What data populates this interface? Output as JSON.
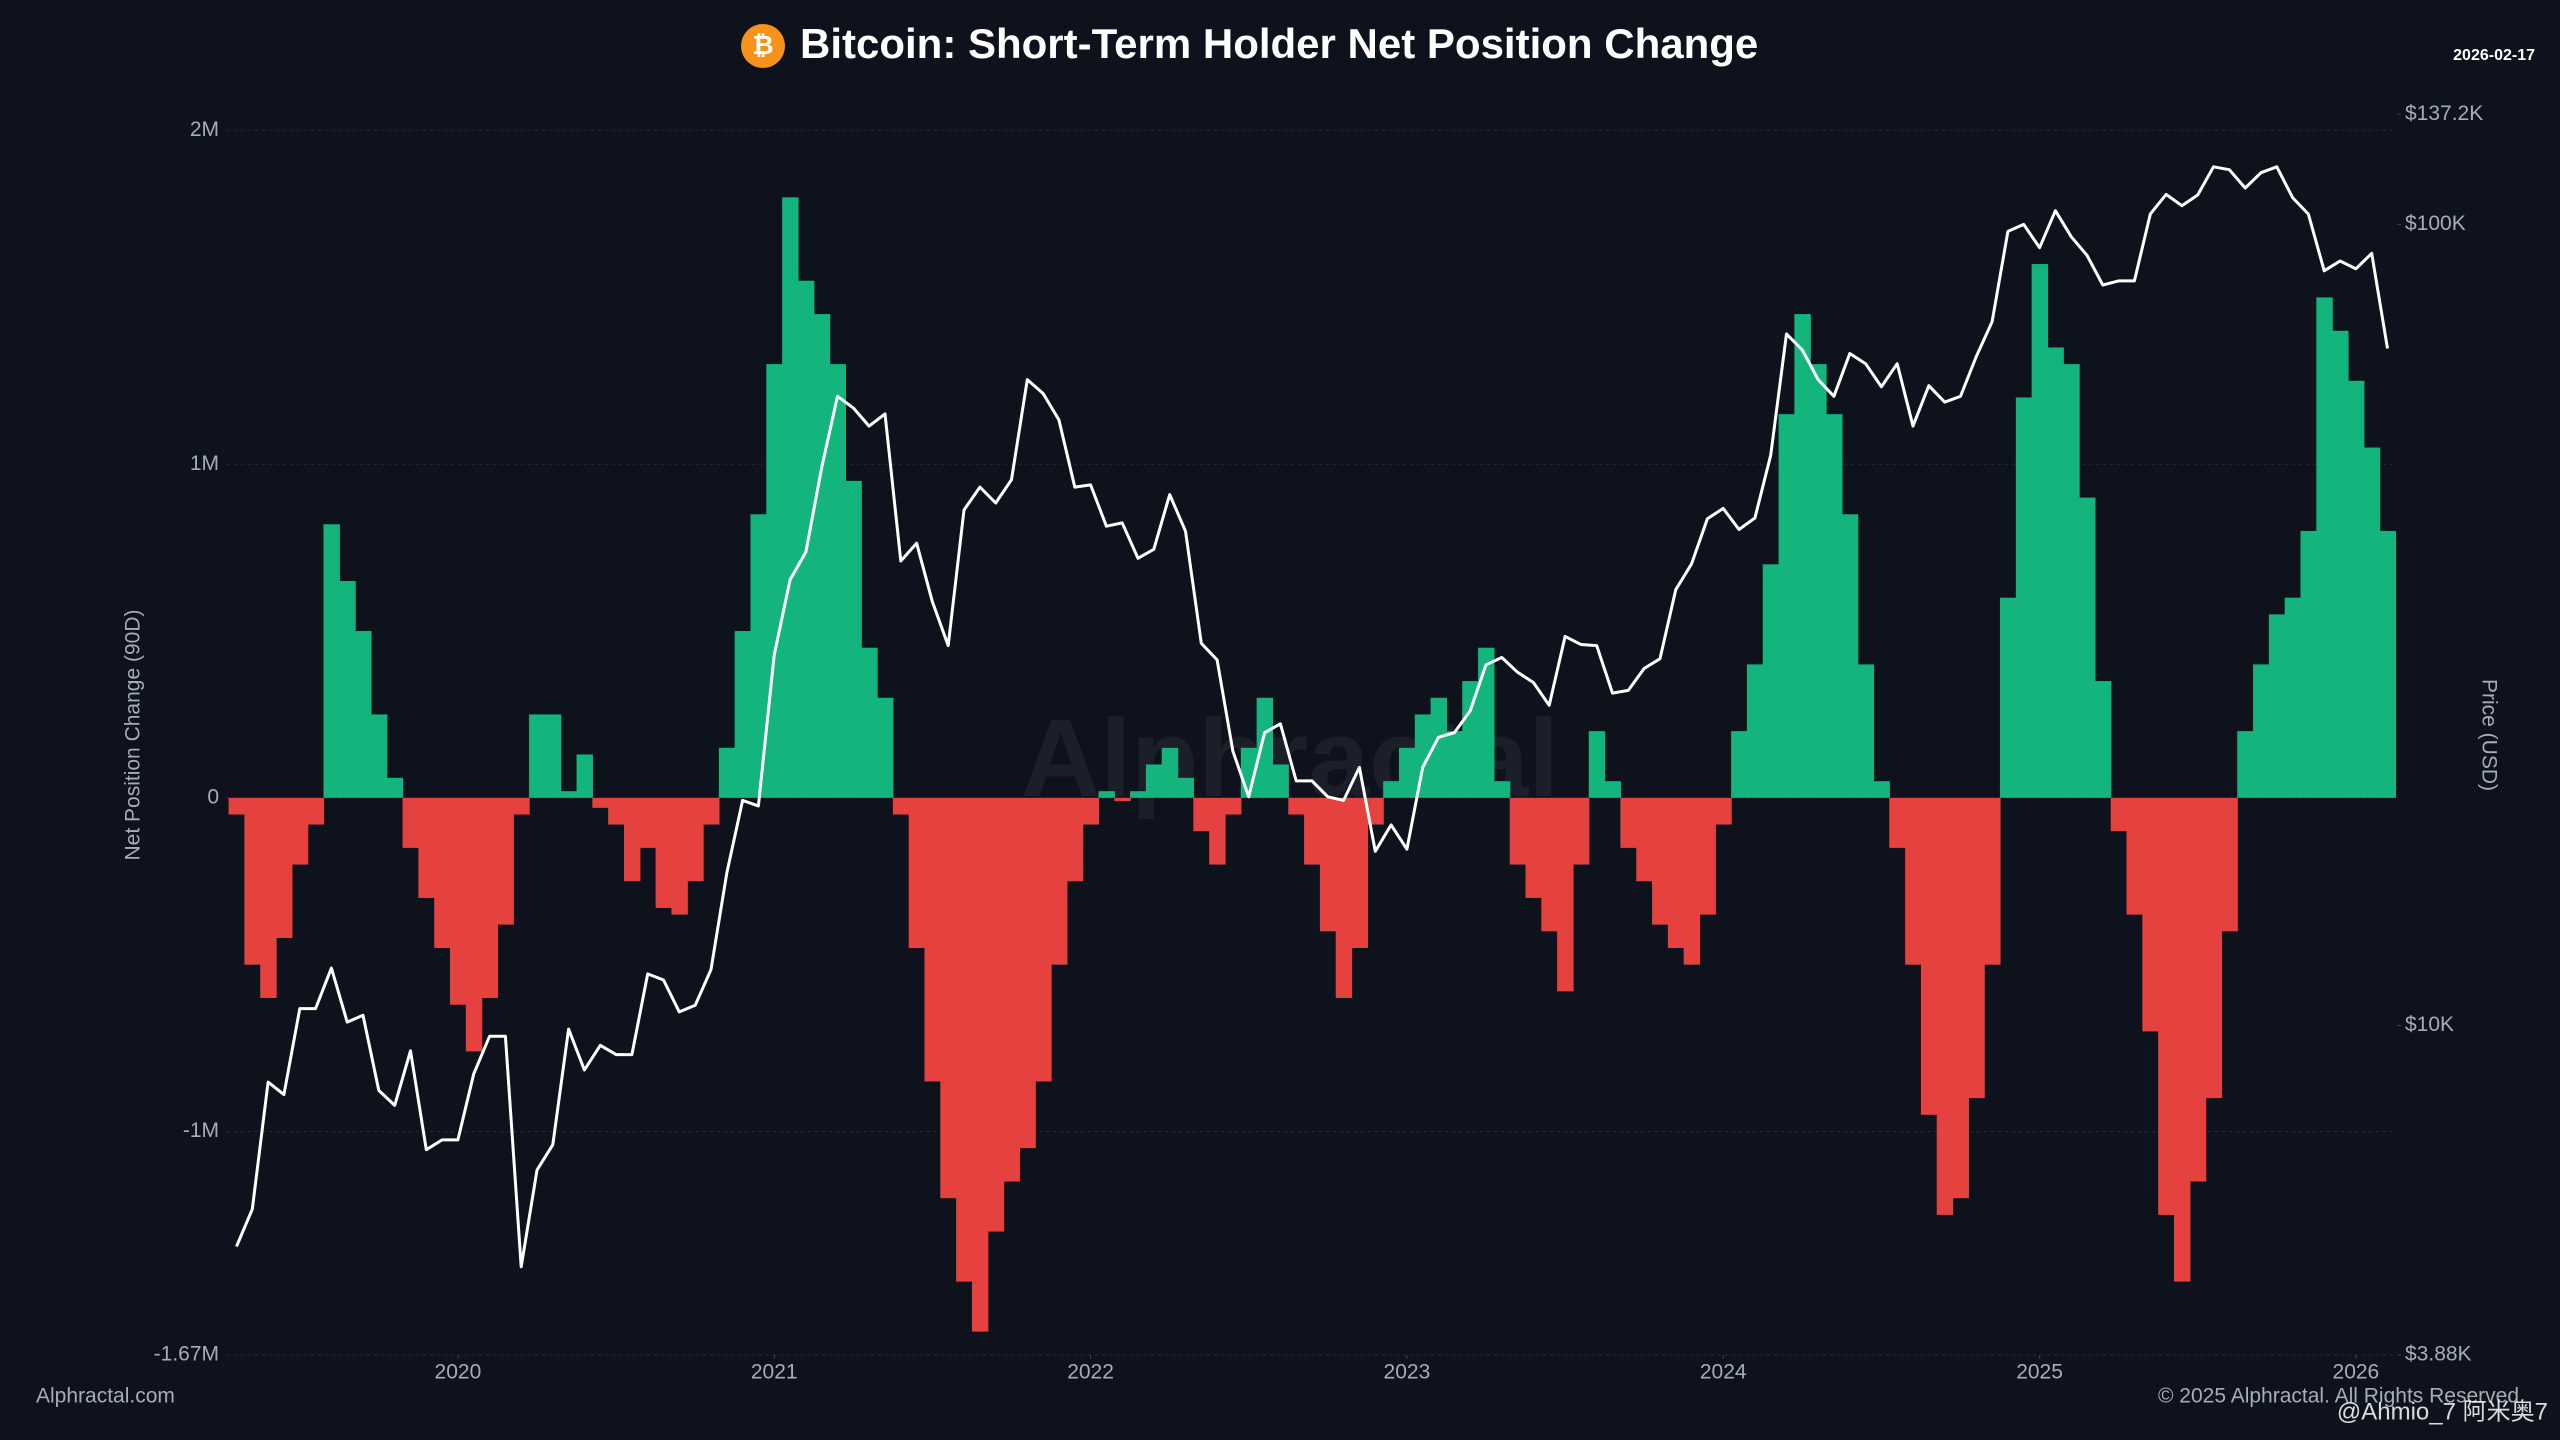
{
  "chart_data": {
    "type": "bar",
    "title": "Bitcoin: Short-Term Holder Net Position Change",
    "date": "2026-02-17",
    "y_label": "Net Position Change (90D)",
    "y2_label": "Price (USD)",
    "watermark": "Alphractal",
    "source": "Alphractal.com",
    "copyright": "© 2025 Alphractal. All Rights Reserved",
    "user_watermark": "@Ahmio_7 阿米奥7",
    "xlim": [
      2019.27,
      2026.13
    ],
    "xticks": [
      2020,
      2021,
      2022,
      2023,
      2024,
      2025,
      2026
    ],
    "ylim": [
      -1670000,
      2000000
    ],
    "yticks": [
      {
        "value": -1670000,
        "label": "-1.67M"
      },
      {
        "value": -1000000,
        "label": "-1M"
      },
      0,
      {
        "value": 1000000,
        "label": "1M"
      },
      {
        "value": 2000000,
        "label": "2M"
      }
    ],
    "y2lim": [
      3880,
      137200
    ],
    "y2ticks": [
      {
        "value": 3880,
        "label": "$3.88K"
      },
      {
        "value": 10000,
        "label": "$10K"
      },
      {
        "value": 100000,
        "label": "$100K"
      },
      {
        "value": 137200,
        "label": "$137.2K"
      }
    ],
    "y2_log": true,
    "grid": true,
    "x": [
      2019.3,
      2019.35,
      2019.4,
      2019.45,
      2019.5,
      2019.55,
      2019.6,
      2019.65,
      2019.7,
      2019.75,
      2019.8,
      2019.85,
      2019.9,
      2019.95,
      2020,
      2020.05,
      2020.1,
      2020.15,
      2020.2,
      2020.25,
      2020.3,
      2020.35,
      2020.4,
      2020.45,
      2020.5,
      2020.55,
      2020.6,
      2020.65,
      2020.7,
      2020.75,
      2020.8,
      2020.85,
      2020.9,
      2020.95,
      2021,
      2021.05,
      2021.1,
      2021.15,
      2021.2,
      2021.25,
      2021.3,
      2021.35,
      2021.4,
      2021.45,
      2021.5,
      2021.55,
      2021.6,
      2021.65,
      2021.7,
      2021.75,
      2021.8,
      2021.85,
      2021.9,
      2021.95,
      2022,
      2022.05,
      2022.1,
      2022.15,
      2022.2,
      2022.25,
      2022.3,
      2022.35,
      2022.4,
      2022.45,
      2022.5,
      2022.55,
      2022.6,
      2022.65,
      2022.7,
      2022.75,
      2022.8,
      2022.85,
      2022.9,
      2022.95,
      2023,
      2023.05,
      2023.1,
      2023.15,
      2023.2,
      2023.25,
      2023.3,
      2023.35,
      2023.4,
      2023.45,
      2023.5,
      2023.55,
      2023.6,
      2023.65,
      2023.7,
      2023.75,
      2023.8,
      2023.85,
      2023.9,
      2023.95,
      2024,
      2024.05,
      2024.1,
      2024.15,
      2024.2,
      2024.25,
      2024.3,
      2024.35,
      2024.4,
      2024.45,
      2024.5,
      2024.55,
      2024.6,
      2024.65,
      2024.7,
      2024.75,
      2024.8,
      2024.85,
      2024.9,
      2024.95,
      2025,
      2025.05,
      2025.1,
      2025.15,
      2025.2,
      2025.25,
      2025.3,
      2025.35,
      2025.4,
      2025.45,
      2025.5,
      2025.55,
      2025.6,
      2025.65,
      2025.7,
      2025.75,
      2025.8,
      2025.85,
      2025.9,
      2025.95,
      2026,
      2026.05,
      2026.1
    ],
    "series": [
      {
        "type": "bar",
        "color": "#14b57c",
        "negative_color": "#e5423f",
        "values": [
          -50000,
          -500000,
          -600000,
          -420000,
          -200000,
          -80000,
          820000,
          650000,
          500000,
          250000,
          60000,
          -150000,
          -300000,
          -450000,
          -620000,
          -760000,
          -600000,
          -380000,
          -50000,
          250000,
          250000,
          20000,
          130000,
          -30000,
          -80000,
          -250000,
          -150000,
          -330000,
          -350000,
          -250000,
          -80000,
          150000,
          500000,
          850000,
          1300000,
          1800000,
          1550000,
          1450000,
          1300000,
          950000,
          450000,
          300000,
          -50000,
          -450000,
          -850000,
          -1200000,
          -1450000,
          -1600000,
          -1300000,
          -1150000,
          -1050000,
          -850000,
          -500000,
          -250000,
          -80000,
          20000,
          -10000,
          20000,
          100000,
          150000,
          60000,
          -100000,
          -200000,
          -50000,
          150000,
          300000,
          100000,
          -50000,
          -200000,
          -400000,
          -600000,
          -450000,
          -80000,
          50000,
          150000,
          250000,
          300000,
          200000,
          350000,
          450000,
          50000,
          -200000,
          -300000,
          -400000,
          -580000,
          -200000,
          200000,
          50000,
          -150000,
          -250000,
          -380000,
          -450000,
          -500000,
          -350000,
          -80000,
          200000,
          400000,
          700000,
          1150000,
          1450000,
          1300000,
          1150000,
          850000,
          400000,
          50000,
          -150000,
          -500000,
          -950000,
          -1250000,
          -1200000,
          -900000,
          -500000,
          600000,
          1200000,
          1600000,
          1350000,
          1300000,
          900000,
          350000,
          -100000,
          -350000,
          -700000,
          -1250000,
          -1450000,
          -1150000,
          -900000,
          -400000,
          200000,
          400000,
          550000,
          600000,
          800000,
          1500000,
          1400000,
          1250000,
          1050000,
          800000
        ]
      },
      {
        "type": "line",
        "axis": "y2",
        "color": "#ffffff",
        "values": [
          5300,
          5900,
          8500,
          8200,
          10500,
          10500,
          11800,
          10100,
          10300,
          8300,
          7950,
          9300,
          7000,
          7200,
          7200,
          8700,
          9700,
          9700,
          5000,
          6600,
          7100,
          9900,
          8800,
          9450,
          9200,
          9200,
          11600,
          11400,
          10400,
          10600,
          11750,
          15500,
          19100,
          18800,
          29000,
          36000,
          39000,
          49700,
          61000,
          59000,
          56000,
          58000,
          38000,
          40000,
          33800,
          29800,
          44000,
          47000,
          44900,
          48000,
          64000,
          61500,
          57000,
          47000,
          47300,
          42000,
          42400,
          38300,
          39300,
          46000,
          41400,
          30000,
          28600,
          22000,
          19300,
          23200,
          23800,
          20200,
          20200,
          19300,
          19100,
          21000,
          16500,
          17800,
          16600,
          21000,
          22900,
          23200,
          24700,
          28200,
          28800,
          27600,
          26800,
          25100,
          30600,
          29900,
          29800,
          26000,
          26200,
          27900,
          28700,
          35000,
          37700,
          42900,
          44200,
          41600,
          43000,
          51500,
          73000,
          69700,
          64000,
          61000,
          69000,
          67000,
          62700,
          67000,
          56000,
          62900,
          60000,
          61000,
          68400,
          75600,
          98000,
          100000,
          93500,
          104000,
          96500,
          91500,
          84000,
          85000,
          85000,
          103000,
          109000,
          105500,
          108800,
          118000,
          117000,
          111000,
          116000,
          118000,
          108000,
          103000,
          87500,
          90000,
          88000,
          92000,
          70000
        ]
      }
    ]
  }
}
